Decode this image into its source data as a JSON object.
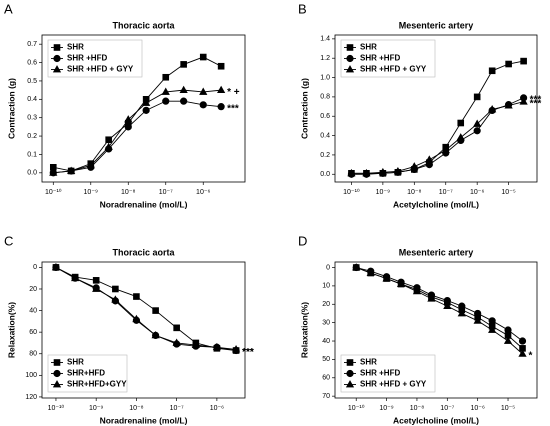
{
  "chart_data": [
    {
      "type": "line",
      "panel_label": "A",
      "title": "Thoracic aorta",
      "xlabel": "Noradrenaline (mol/L)",
      "ylabel": "Contraction (g)",
      "xscale": "log",
      "xlim": [
        5e-11,
        1.3e-05
      ],
      "xticks": [
        {
          "value": 1e-10,
          "label": "10⁻¹⁰"
        },
        {
          "value": 1e-09,
          "label": "10⁻⁹"
        },
        {
          "value": 1e-08,
          "label": "10⁻⁸"
        },
        {
          "value": 1e-07,
          "label": "10⁻⁷"
        },
        {
          "value": 1e-06,
          "label": "10⁻⁶"
        }
      ],
      "ylim": [
        -0.05,
        0.75
      ],
      "yticks": [
        {
          "value": 0,
          "label": "0.0"
        },
        0.1,
        0.2,
        0.3,
        0.4,
        0.5,
        0.6,
        0.7
      ],
      "y_inverted": false,
      "legend": "upper left",
      "x": [
        1e-10,
        3e-10,
        1e-09,
        3e-09,
        1e-08,
        3e-08,
        1e-07,
        3e-07,
        1e-06,
        3e-06
      ],
      "series": [
        {
          "name": "SHR",
          "color": "#000000",
          "marker": "square",
          "values": [
            0.03,
            0.01,
            0.05,
            0.18,
            0.27,
            0.4,
            0.52,
            0.59,
            0.63,
            0.58
          ]
        },
        {
          "name": "SHR +HFD",
          "color": "#000000",
          "marker": "circle",
          "values": [
            0.0,
            0.01,
            0.03,
            0.13,
            0.25,
            0.34,
            0.39,
            0.39,
            0.37,
            0.36
          ],
          "end_label": "***"
        },
        {
          "name": "SHR +HFD + GYY",
          "color": "#000000",
          "marker": "triangle",
          "values": [
            0.0,
            0.01,
            0.04,
            0.14,
            0.29,
            0.38,
            0.44,
            0.45,
            0.44,
            0.45
          ],
          "end_label": "* +"
        }
      ]
    },
    {
      "type": "line",
      "panel_label": "B",
      "title": "Mesenteric artery",
      "xlabel": "Acetylcholine (mol/L)",
      "ylabel": "Contraction (g)",
      "xscale": "log",
      "xlim": [
        3e-11,
        8e-05
      ],
      "xticks": [
        {
          "value": 1e-10,
          "label": "10⁻¹⁰"
        },
        {
          "value": 1e-09,
          "label": "10⁻⁹"
        },
        {
          "value": 1e-08,
          "label": "10⁻⁸"
        },
        {
          "value": 1e-07,
          "label": "10⁻⁷"
        },
        {
          "value": 1e-06,
          "label": "10⁻⁶"
        },
        {
          "value": 1e-05,
          "label": "10⁻⁵"
        }
      ],
      "ylim": [
        -0.08,
        1.44
      ],
      "yticks": [
        {
          "value": 0,
          "label": "0.0"
        },
        0.2,
        0.4,
        0.6,
        0.8,
        {
          "value": 1,
          "label": "1.0"
        },
        1.2,
        1.4
      ],
      "y_inverted": false,
      "legend": "upper left",
      "x": [
        1e-10,
        3e-10,
        1e-09,
        3e-09,
        1e-08,
        3e-08,
        1e-07,
        3e-07,
        1e-06,
        3e-06,
        1e-05,
        3e-05
      ],
      "series": [
        {
          "name": "SHR",
          "color": "#000000",
          "marker": "square",
          "values": [
            0.01,
            0.01,
            0.01,
            0.02,
            0.05,
            0.12,
            0.28,
            0.53,
            0.8,
            1.07,
            1.14,
            1.17
          ]
        },
        {
          "name": "SHR +HFD",
          "color": "#000000",
          "marker": "circle",
          "values": [
            0.0,
            0.0,
            0.01,
            0.02,
            0.05,
            0.1,
            0.22,
            0.35,
            0.45,
            0.66,
            0.72,
            0.79
          ],
          "end_label": "***"
        },
        {
          "name": "SHR +HFD + GYY",
          "color": "#000000",
          "marker": "triangle",
          "values": [
            0.01,
            0.01,
            0.02,
            0.03,
            0.08,
            0.15,
            0.25,
            0.38,
            0.52,
            0.67,
            0.71,
            0.75
          ],
          "end_label": "***"
        }
      ]
    },
    {
      "type": "line",
      "panel_label": "C",
      "title": "Thoracic aorta",
      "xlabel": "Noradrenaline (mol/L)",
      "ylabel": "Relaxation(%)",
      "xscale": "log",
      "xlim": [
        4.5e-11,
        5e-06
      ],
      "xticks": [
        {
          "value": 1e-10,
          "label": "10⁻¹⁰"
        },
        {
          "value": 1e-09,
          "label": "10⁻⁹"
        },
        {
          "value": 1e-08,
          "label": "10⁻⁸"
        },
        {
          "value": 1e-07,
          "label": "10⁻⁷"
        },
        {
          "value": 1e-06,
          "label": "10⁻⁶"
        }
      ],
      "ylim": [
        -5,
        121
      ],
      "yticks": [
        0,
        20,
        40,
        60,
        80,
        100,
        120
      ],
      "y_inverted": true,
      "legend": "lower left",
      "x": [
        1e-10,
        3e-10,
        1e-09,
        3e-09,
        1e-08,
        3e-08,
        1e-07,
        3e-07,
        1e-06,
        3e-06
      ],
      "series": [
        {
          "name": "SHR",
          "color": "#000000",
          "marker": "square",
          "values": [
            0,
            9,
            12,
            20,
            27,
            40,
            56,
            70,
            75,
            77
          ],
          "end_label": "***"
        },
        {
          "name": "SHR+HFD",
          "color": "#000000",
          "marker": "circle",
          "values": [
            0,
            10,
            19,
            31,
            49,
            63,
            71,
            73,
            74,
            77
          ],
          "end_label": "***"
        },
        {
          "name": "SHR+HFD+GYY",
          "color": "#000000",
          "marker": "triangle",
          "values": [
            0,
            10,
            20,
            30,
            48,
            63,
            70,
            72,
            74,
            76
          ]
        }
      ]
    },
    {
      "type": "line",
      "panel_label": "D",
      "title": "Mesenteric artery",
      "xlabel": "Acetylcholine (mol/L)",
      "ylabel": "Relaxation(%)",
      "xscale": "log",
      "xlim": [
        2e-11,
        9e-05
      ],
      "xticks": [
        {
          "value": 1e-10,
          "label": "10⁻¹⁰"
        },
        {
          "value": 1e-09,
          "label": "10⁻⁹"
        },
        {
          "value": 1e-08,
          "label": "10⁻⁸"
        },
        {
          "value": 1e-07,
          "label": "10⁻⁷"
        },
        {
          "value": 1e-06,
          "label": "10⁻⁶"
        },
        {
          "value": 1e-05,
          "label": "10⁻⁵"
        }
      ],
      "ylim": [
        -3,
        71
      ],
      "yticks": [
        0,
        10,
        20,
        30,
        40,
        50,
        60,
        70
      ],
      "y_inverted": true,
      "legend": "lower left",
      "x": [
        1e-10,
        3e-10,
        1e-09,
        3e-09,
        1e-08,
        3e-08,
        1e-07,
        3e-07,
        1e-06,
        3e-06,
        1e-05,
        3e-05
      ],
      "series": [
        {
          "name": "SHR",
          "color": "#000000",
          "marker": "square",
          "values": [
            0,
            3,
            6,
            9,
            12,
            16,
            19,
            23,
            27,
            32,
            37,
            44
          ]
        },
        {
          "name": "SHR +HFD",
          "color": "#000000",
          "marker": "circle",
          "values": [
            0,
            2,
            5,
            8,
            11,
            15,
            18,
            21,
            25,
            29,
            34,
            40
          ]
        },
        {
          "name": "SHR +HFD + GYY",
          "color": "#000000",
          "marker": "triangle",
          "values": [
            0,
            3,
            6,
            9,
            13,
            17,
            21,
            25,
            29,
            34,
            40,
            47
          ],
          "end_label": "*"
        }
      ]
    }
  ]
}
